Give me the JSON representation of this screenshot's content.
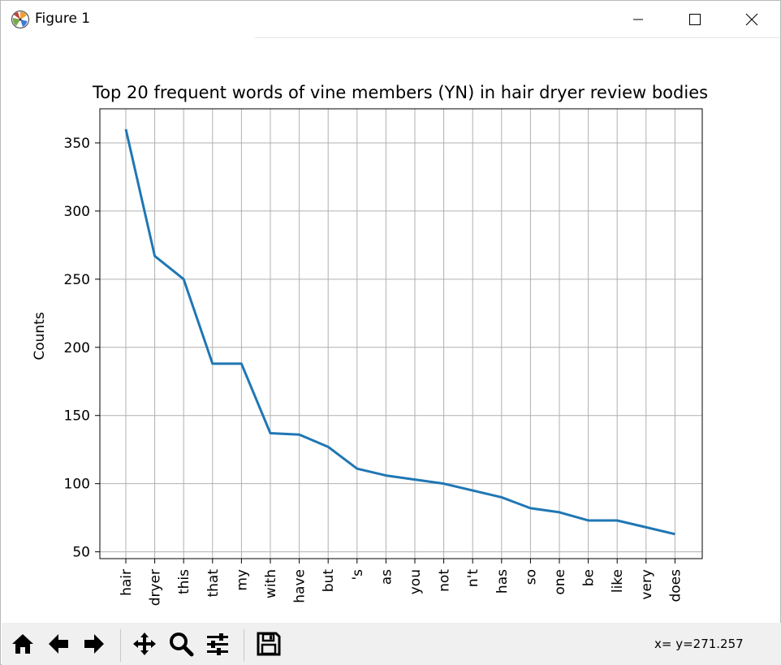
{
  "window": {
    "title": "Figure 1",
    "app_icon": "matplotlib-icon",
    "controls": {
      "minimize_icon": "minimize-icon",
      "maximize_icon": "maximize-icon",
      "close_icon": "close-icon"
    }
  },
  "toolbar": {
    "buttons": [
      {
        "name": "home-button",
        "icon": "home-icon"
      },
      {
        "name": "back-button",
        "icon": "arrow-left-icon"
      },
      {
        "name": "forward-button",
        "icon": "arrow-right-icon"
      },
      {
        "name": "pan-button",
        "icon": "move-icon"
      },
      {
        "name": "zoom-button",
        "icon": "magnifier-icon"
      },
      {
        "name": "configure-subplots-button",
        "icon": "sliders-icon"
      },
      {
        "name": "save-button",
        "icon": "floppy-disk-icon"
      }
    ],
    "coordinates": "x= y=271.257"
  },
  "chart_data": {
    "type": "line",
    "title": "Top 20 frequent words of vine members (YN) in hair dryer review bodies",
    "xlabel": "",
    "ylabel": "Counts",
    "categories": [
      "hair",
      "dryer",
      "this",
      "that",
      "my",
      "with",
      "have",
      "but",
      "'s",
      "as",
      "you",
      "not",
      "n't",
      "has",
      "so",
      "one",
      "be",
      "like",
      "very",
      "does"
    ],
    "values": [
      360,
      267,
      250,
      188,
      188,
      137,
      136,
      127,
      111,
      106,
      103,
      100,
      95,
      90,
      82,
      79,
      73,
      73,
      68,
      63
    ],
    "yticks": [
      50,
      100,
      150,
      200,
      250,
      300,
      350
    ],
    "ylim": [
      45,
      375
    ],
    "grid": true,
    "line_color": "#1f77b4"
  }
}
